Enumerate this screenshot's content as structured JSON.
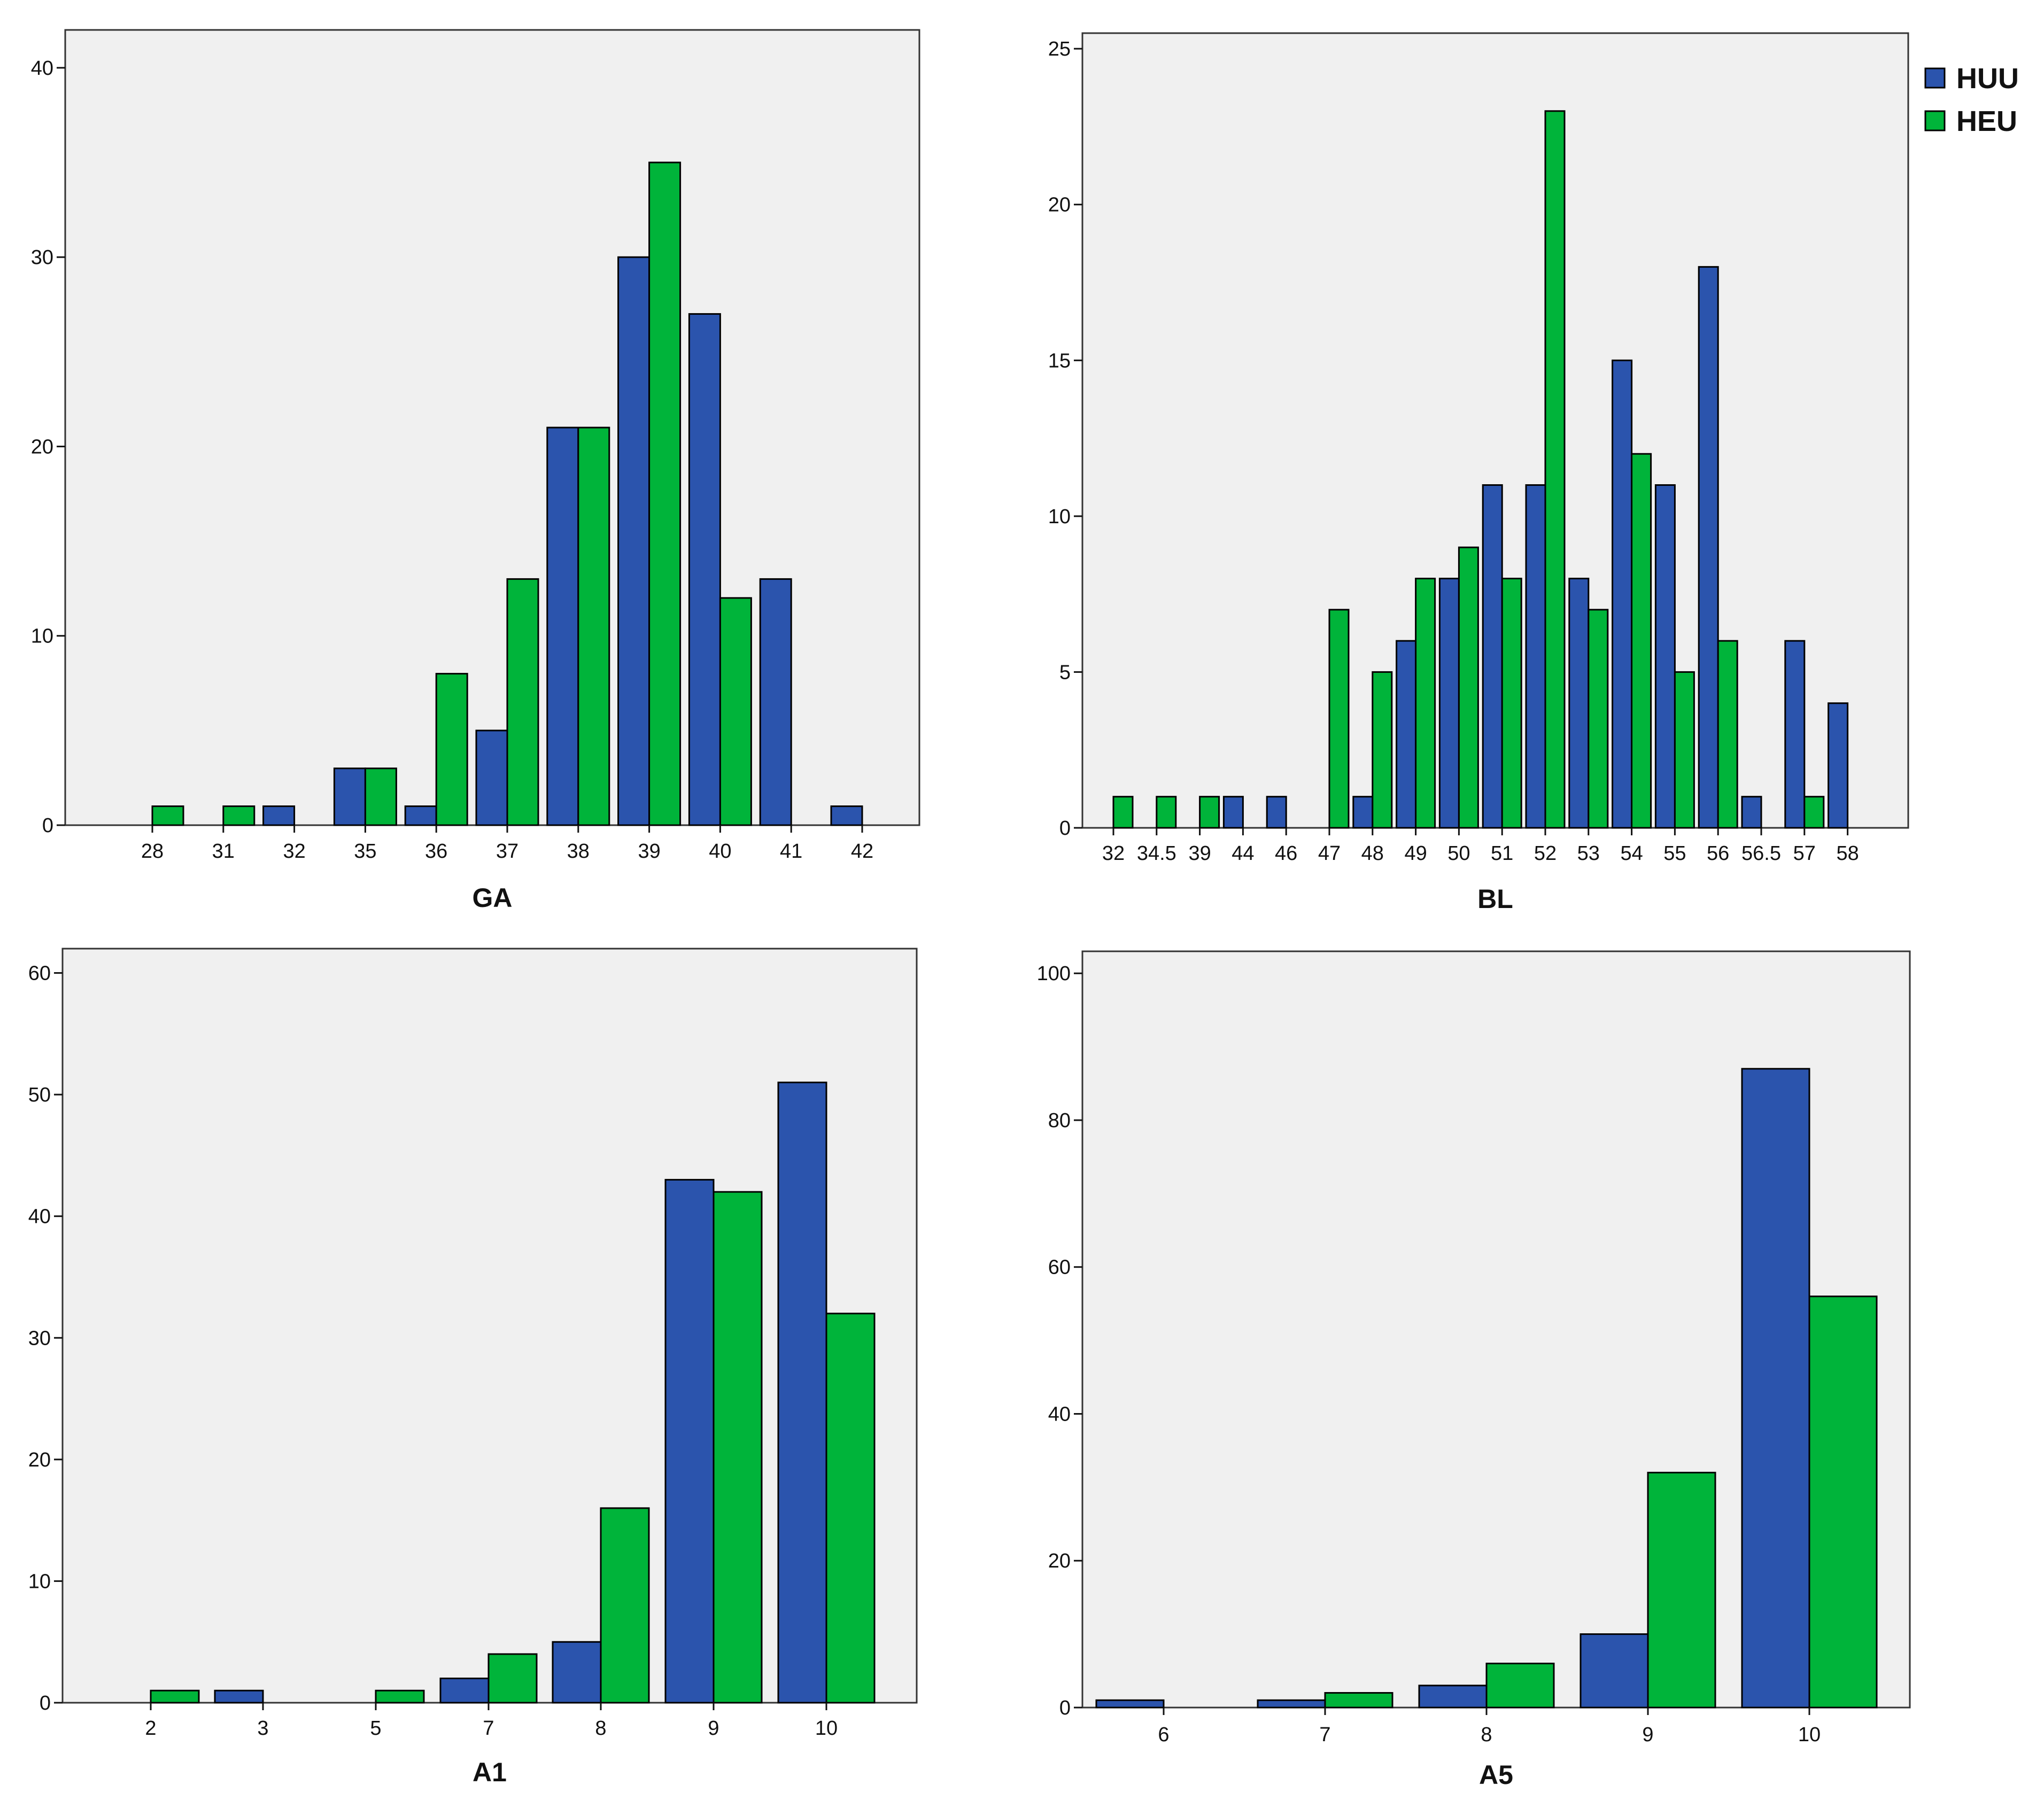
{
  "colors": {
    "HUU": "#2b54ad",
    "HEU": "#00b43a",
    "plot_bg": "#f0f0f0",
    "stroke": "#000000"
  },
  "legend": {
    "entries": [
      {
        "name": "HUU"
      },
      {
        "name": "HEU"
      }
    ]
  },
  "chart_data": [
    {
      "type": "bar",
      "title": "",
      "xlabel": "GA",
      "ylabel": "",
      "ylim": [
        0,
        42
      ],
      "yticks": [
        0,
        10,
        20,
        30,
        40
      ],
      "categories": [
        "28",
        "31",
        "32",
        "35",
        "36",
        "37",
        "38",
        "39",
        "40",
        "41",
        "42"
      ],
      "series": [
        {
          "name": "HUU",
          "values": [
            0,
            0,
            1,
            3,
            1,
            5,
            21,
            30,
            27,
            13,
            1
          ]
        },
        {
          "name": "HEU",
          "values": [
            1,
            1,
            0,
            3,
            8,
            13,
            21,
            35,
            12,
            0,
            0
          ]
        }
      ]
    },
    {
      "type": "bar",
      "title": "",
      "xlabel": "BL",
      "ylabel": "",
      "ylim": [
        0,
        25.5
      ],
      "yticks": [
        0,
        5,
        10,
        15,
        20,
        25
      ],
      "categories": [
        "32",
        "34.5",
        "39",
        "44",
        "46",
        "47",
        "48",
        "49",
        "50",
        "51",
        "52",
        "53",
        "54",
        "55",
        "56",
        "56.5",
        "57",
        "58"
      ],
      "series": [
        {
          "name": "HUU",
          "values": [
            0,
            0,
            0,
            1,
            1,
            0,
            1,
            6,
            8,
            11,
            11,
            8,
            15,
            11,
            18,
            1,
            6,
            4
          ]
        },
        {
          "name": "HEU",
          "values": [
            1,
            1,
            1,
            0,
            0,
            7,
            5,
            8,
            9,
            8,
            23,
            7,
            12,
            5,
            6,
            0,
            1,
            0
          ]
        }
      ],
      "legend": "top-right"
    },
    {
      "type": "bar",
      "title": "",
      "xlabel": "A1",
      "ylabel": "",
      "ylim": [
        0,
        62
      ],
      "yticks": [
        0,
        10,
        20,
        30,
        40,
        50,
        60
      ],
      "categories": [
        "2",
        "3",
        "5",
        "7",
        "8",
        "9",
        "10"
      ],
      "series": [
        {
          "name": "HUU",
          "values": [
            0,
            1,
            0,
            2,
            5,
            43,
            51
          ]
        },
        {
          "name": "HEU",
          "values": [
            1,
            0,
            1,
            4,
            16,
            42,
            32
          ]
        }
      ]
    },
    {
      "type": "bar",
      "title": "",
      "xlabel": "A5",
      "ylabel": "",
      "ylim": [
        0,
        103
      ],
      "yticks": [
        0,
        20,
        40,
        60,
        80,
        100
      ],
      "categories": [
        "6",
        "7",
        "8",
        "9",
        "10"
      ],
      "series": [
        {
          "name": "HUU",
          "values": [
            1,
            1,
            3,
            10,
            87
          ]
        },
        {
          "name": "HEU",
          "values": [
            0,
            2,
            6,
            32,
            56
          ]
        }
      ]
    }
  ]
}
